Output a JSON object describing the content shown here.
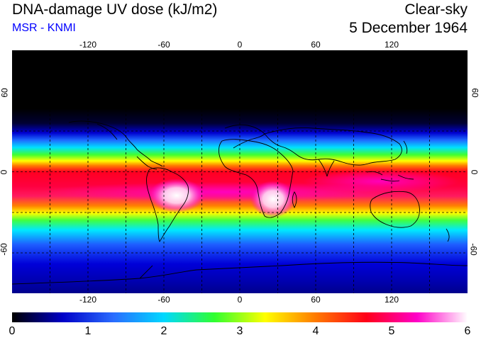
{
  "header": {
    "title": "DNA-damage UV dose (kJ/m2)",
    "source": "MSR - KNMI",
    "mode": "Clear-sky",
    "date": "5 December 1964"
  },
  "map": {
    "lon_ticks": [
      "-120",
      "-60",
      "0",
      "60",
      "120"
    ],
    "lat_ticks": [
      "60",
      "0",
      "-60"
    ],
    "lon_range": [
      -180,
      180
    ],
    "lat_range": [
      -90,
      90
    ]
  },
  "colorbar": {
    "labels": [
      "0",
      "1",
      "2",
      "3",
      "4",
      "5",
      "6"
    ],
    "range": [
      0,
      6
    ],
    "stops": [
      "#000000",
      "#0000c8",
      "#2a6cff",
      "#00d8ff",
      "#30ff30",
      "#ffff00",
      "#ff7a00",
      "#ff0018",
      "#ff00c8",
      "#ffffff"
    ]
  },
  "colors": {
    "accent": "#0000ff"
  }
}
